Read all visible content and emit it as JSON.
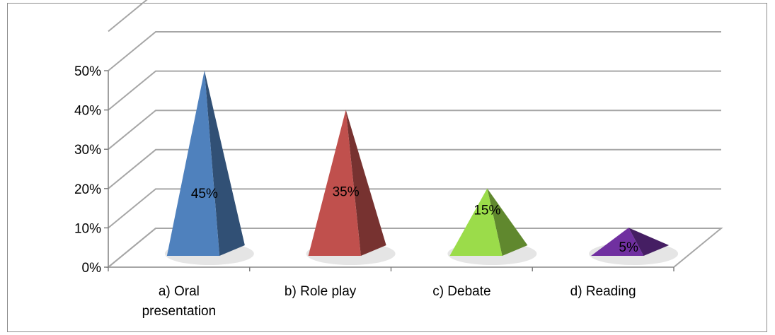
{
  "chart_data": {
    "type": "bar",
    "style": "3d-pyramid",
    "categories": [
      [
        "a) Oral",
        "presentation"
      ],
      [
        "b) Role play"
      ],
      [
        "c) Debate"
      ],
      [
        "d) Reading"
      ]
    ],
    "values": [
      45,
      35,
      15,
      5
    ],
    "data_labels": [
      "45%",
      "35%",
      "15%",
      "5%"
    ],
    "colors": [
      "#4f81bd",
      "#c0504d",
      "#9bdc4a",
      "#7030a0"
    ],
    "ylim": [
      0,
      50
    ],
    "yticks": [
      {
        "value": 0,
        "label": "0%"
      },
      {
        "value": 10,
        "label": "10%"
      },
      {
        "value": 20,
        "label": "20%"
      },
      {
        "value": 30,
        "label": "30%"
      },
      {
        "value": 40,
        "label": "40%"
      },
      {
        "value": 50,
        "label": "50%"
      }
    ],
    "grid": true,
    "legend": "none"
  }
}
